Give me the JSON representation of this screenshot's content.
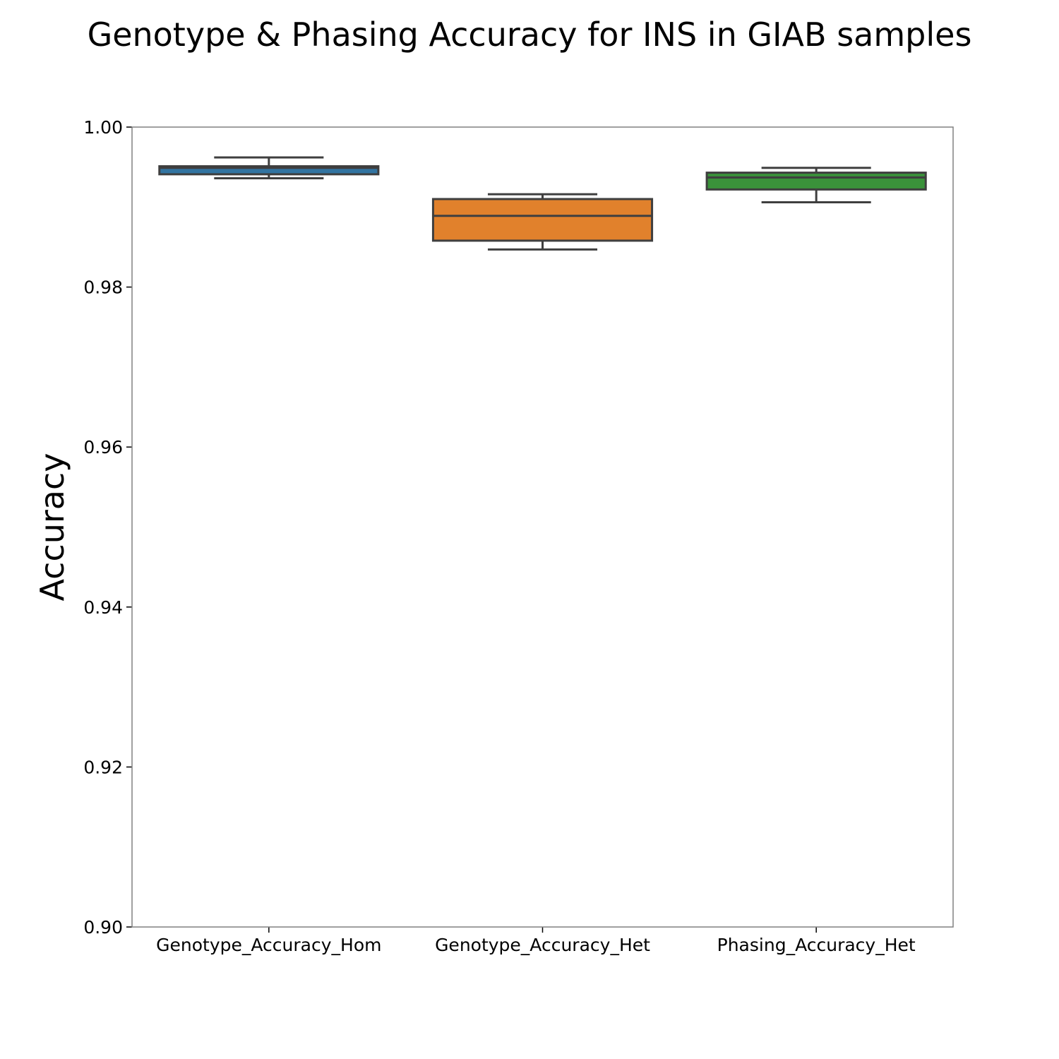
{
  "chart_data": {
    "type": "box",
    "title": "Genotype & Phasing Accuracy for INS in GIAB samples",
    "xlabel": "",
    "ylabel": "Accuracy",
    "ylim": [
      0.9,
      1.0
    ],
    "yticks": [
      "0.90",
      "0.92",
      "0.94",
      "0.96",
      "0.98",
      "1.00"
    ],
    "categories": [
      "Genotype_Accuracy_Hom",
      "Genotype_Accuracy_Het",
      "Phasing_Accuracy_Het"
    ],
    "boxes": [
      {
        "category": "Genotype_Accuracy_Hom",
        "whisker_low": 0.9936,
        "q1": 0.9941,
        "median": 0.9949,
        "q3": 0.9951,
        "whisker_high": 0.9962,
        "color": "#3274a1"
      },
      {
        "category": "Genotype_Accuracy_Het",
        "whisker_low": 0.9847,
        "q1": 0.9858,
        "median": 0.9889,
        "q3": 0.991,
        "whisker_high": 0.9916,
        "color": "#e1812c"
      },
      {
        "category": "Phasing_Accuracy_Het",
        "whisker_low": 0.9906,
        "q1": 0.9922,
        "median": 0.9937,
        "q3": 0.9943,
        "whisker_high": 0.9949,
        "color": "#3a923a"
      }
    ],
    "grid": false,
    "legend": "none"
  }
}
